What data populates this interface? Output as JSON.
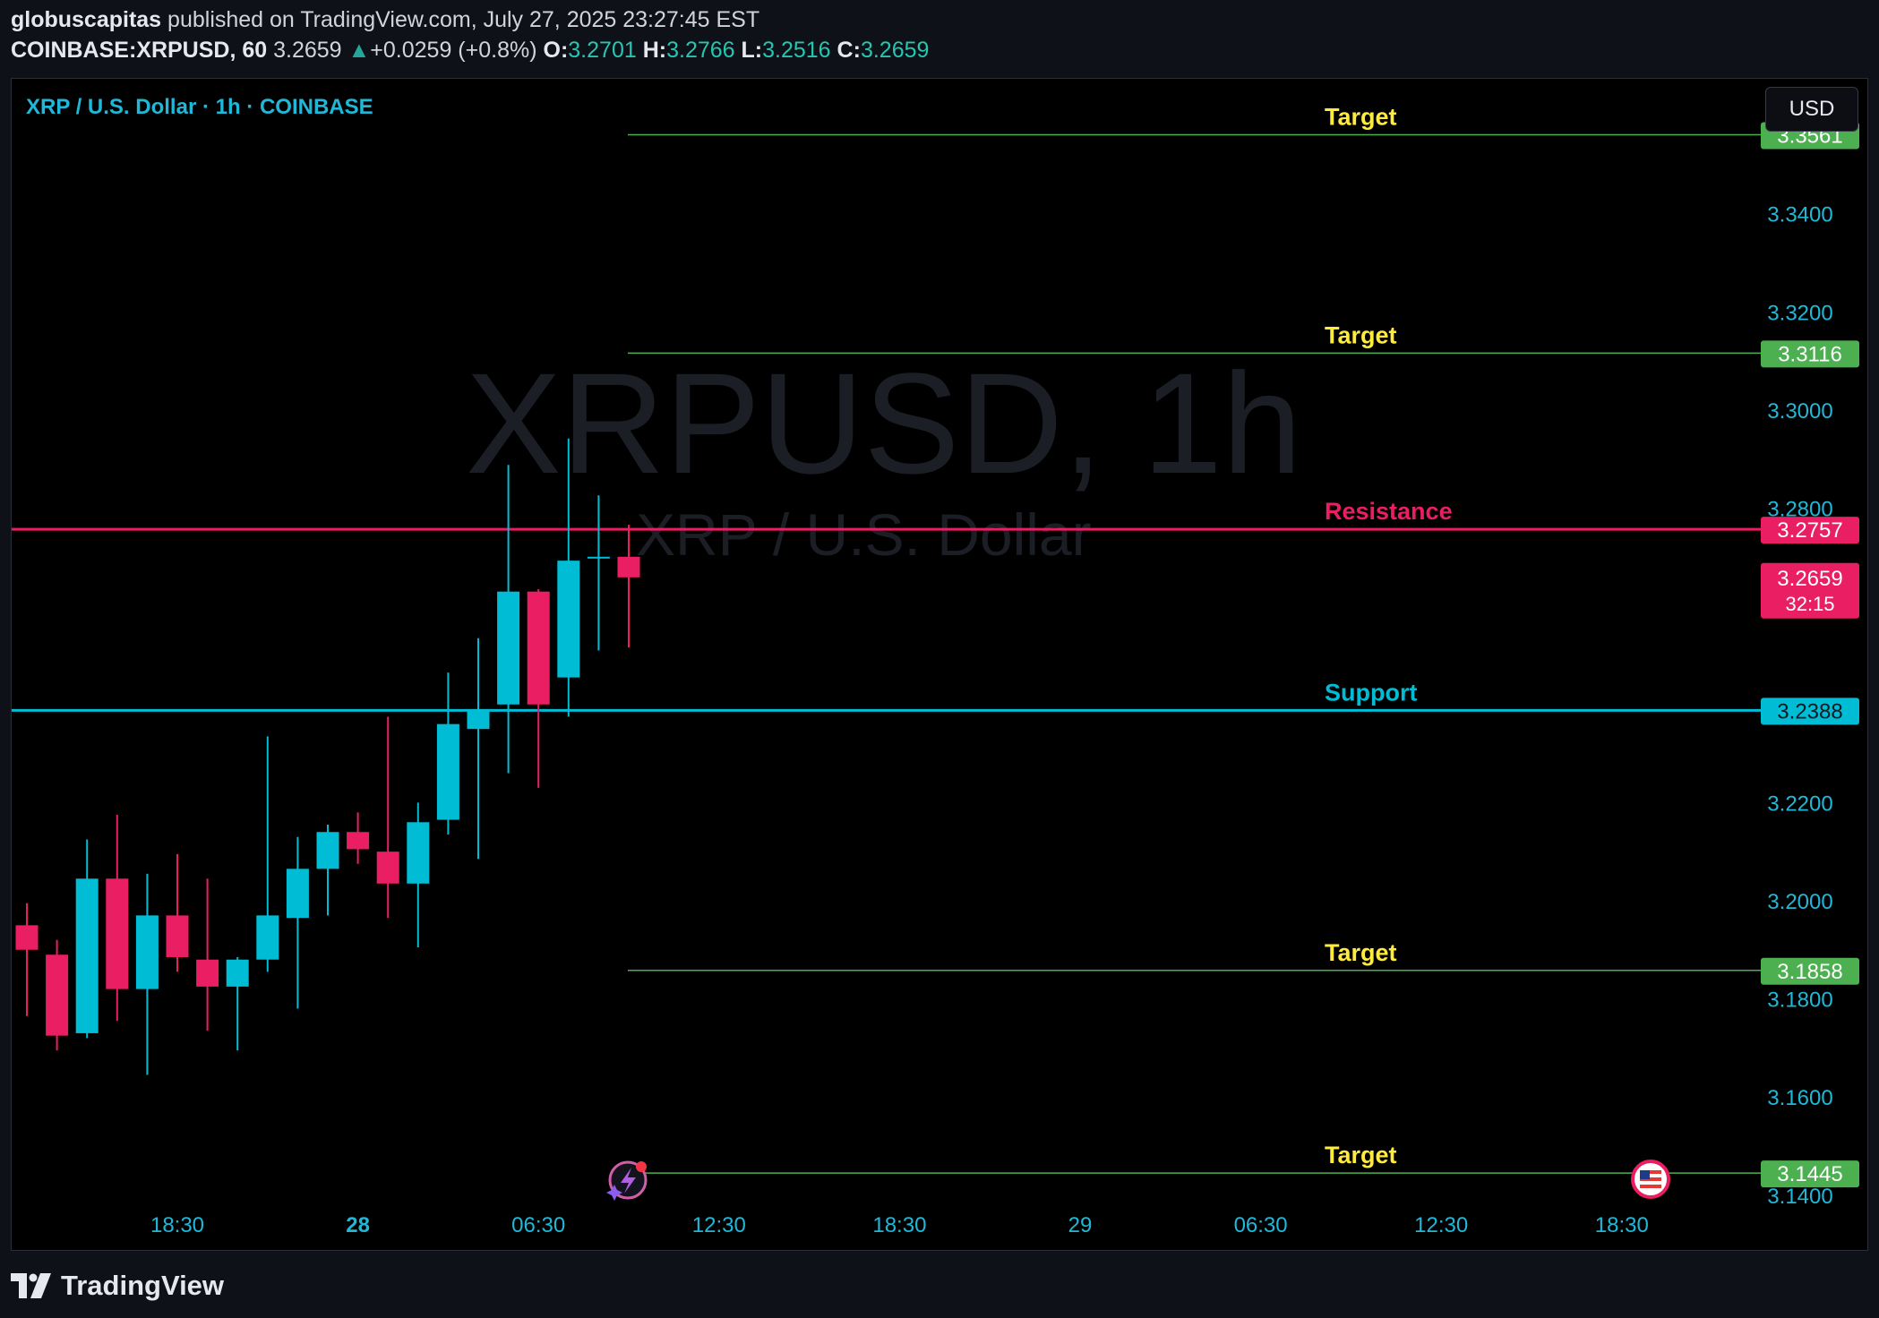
{
  "header": {
    "author": "globuscapitas",
    "published_text": "published on TradingView.com, July 27, 2025 23:27:45 EST"
  },
  "quote": {
    "symbol": "COINBASE:XRPUSD, 60",
    "last": "3.2659",
    "change_arrow": "▲",
    "change": "+0.0259 (+0.8%)",
    "open_label": "O:",
    "open": "3.2701",
    "high_label": "H:",
    "high": "3.2766",
    "low_label": "L:",
    "low": "3.2516",
    "close_label": "C:",
    "close": "3.2659"
  },
  "legend": {
    "title": "XRP / U.S. Dollar · 1h · COINBASE"
  },
  "currency_button": {
    "label": "USD"
  },
  "watermark": {
    "line1": "XRPUSD, 1h",
    "line2": "XRP / U.S. Dollar"
  },
  "footer": {
    "brand": "TradingView",
    "logo_icon": "tradingview-logo-icon"
  },
  "colors": {
    "up": "#00bcd4",
    "down": "#e91e63",
    "target": "#4caf50",
    "resistance": "#e91e63",
    "support": "#00bcd4",
    "target_label": "#ffeb3b"
  },
  "chart_data": {
    "type": "candlestick",
    "ylim": [
      3.1385,
      3.3675
    ],
    "y_ticks": [
      3.14,
      3.16,
      3.18,
      3.2,
      3.22,
      3.28,
      3.3,
      3.32,
      3.34
    ],
    "x_ticks": [
      {
        "label": "18:30",
        "i": 5,
        "bold": false
      },
      {
        "label": "28",
        "i": 11,
        "bold": true
      },
      {
        "label": "06:30",
        "i": 17,
        "bold": false
      },
      {
        "label": "12:30",
        "i": 23,
        "bold": false
      },
      {
        "label": "18:30",
        "i": 29,
        "bold": false
      },
      {
        "label": "29",
        "i": 35,
        "bold": false
      },
      {
        "label": "06:30",
        "i": 41,
        "bold": false
      },
      {
        "label": "12:30",
        "i": 47,
        "bold": false
      },
      {
        "label": "18:30",
        "i": 53,
        "bold": false
      }
    ],
    "candles": [
      {
        "o": 3.195,
        "h": 3.1995,
        "l": 3.1765,
        "c": 3.19
      },
      {
        "o": 3.189,
        "h": 3.192,
        "l": 3.1695,
        "c": 3.1725
      },
      {
        "o": 3.173,
        "h": 3.2125,
        "l": 3.172,
        "c": 3.2045
      },
      {
        "o": 3.2045,
        "h": 3.2175,
        "l": 3.1755,
        "c": 3.182
      },
      {
        "o": 3.182,
        "h": 3.2055,
        "l": 3.1645,
        "c": 3.197
      },
      {
        "o": 3.197,
        "h": 3.2095,
        "l": 3.1855,
        "c": 3.1885
      },
      {
        "o": 3.188,
        "h": 3.2045,
        "l": 3.1735,
        "c": 3.1825
      },
      {
        "o": 3.1825,
        "h": 3.1885,
        "l": 3.1695,
        "c": 3.188
      },
      {
        "o": 3.188,
        "h": 3.2335,
        "l": 3.1855,
        "c": 3.197
      },
      {
        "o": 3.1965,
        "h": 3.213,
        "l": 3.178,
        "c": 3.2065
      },
      {
        "o": 3.2065,
        "h": 3.2155,
        "l": 3.197,
        "c": 3.214
      },
      {
        "o": 3.214,
        "h": 3.218,
        "l": 3.2075,
        "c": 3.2105
      },
      {
        "o": 3.21,
        "h": 3.2375,
        "l": 3.1965,
        "c": 3.2035
      },
      {
        "o": 3.2035,
        "h": 3.22,
        "l": 3.1905,
        "c": 3.216
      },
      {
        "o": 3.2165,
        "h": 3.2465,
        "l": 3.2135,
        "c": 3.236
      },
      {
        "o": 3.235,
        "h": 3.2535,
        "l": 3.2085,
        "c": 3.239
      },
      {
        "o": 3.24,
        "h": 3.2888,
        "l": 3.226,
        "c": 3.263
      },
      {
        "o": 3.263,
        "h": 3.2635,
        "l": 3.223,
        "c": 3.24
      },
      {
        "o": 3.2455,
        "h": 3.2942,
        "l": 3.2375,
        "c": 3.2693
      },
      {
        "o": 3.2701,
        "h": 3.2826,
        "l": 3.251,
        "c": 3.2701
      },
      {
        "o": 3.2701,
        "h": 3.2766,
        "l": 3.2516,
        "c": 3.2659
      }
    ],
    "levels": [
      {
        "name": "Target",
        "value": 3.3561,
        "label": "3.3561",
        "kind": "target",
        "width": 1.5
      },
      {
        "name": "Target",
        "value": 3.3116,
        "label": "3.3116",
        "kind": "target",
        "width": 1.5
      },
      {
        "name": "Resistance",
        "value": 3.2757,
        "label": "3.2757",
        "kind": "resistance",
        "width": 3
      },
      {
        "name": "Support",
        "value": 3.2388,
        "label": "3.2388",
        "kind": "support",
        "width": 3
      },
      {
        "name": "Target",
        "value": 3.1858,
        "label": "3.1858",
        "kind": "target",
        "width": 1.5
      },
      {
        "name": "Target",
        "value": 3.1445,
        "label": "3.1445",
        "kind": "target",
        "width": 1.5
      }
    ],
    "last_price": {
      "value": 3.2659,
      "label": "3.2659",
      "countdown": "32:15"
    }
  }
}
